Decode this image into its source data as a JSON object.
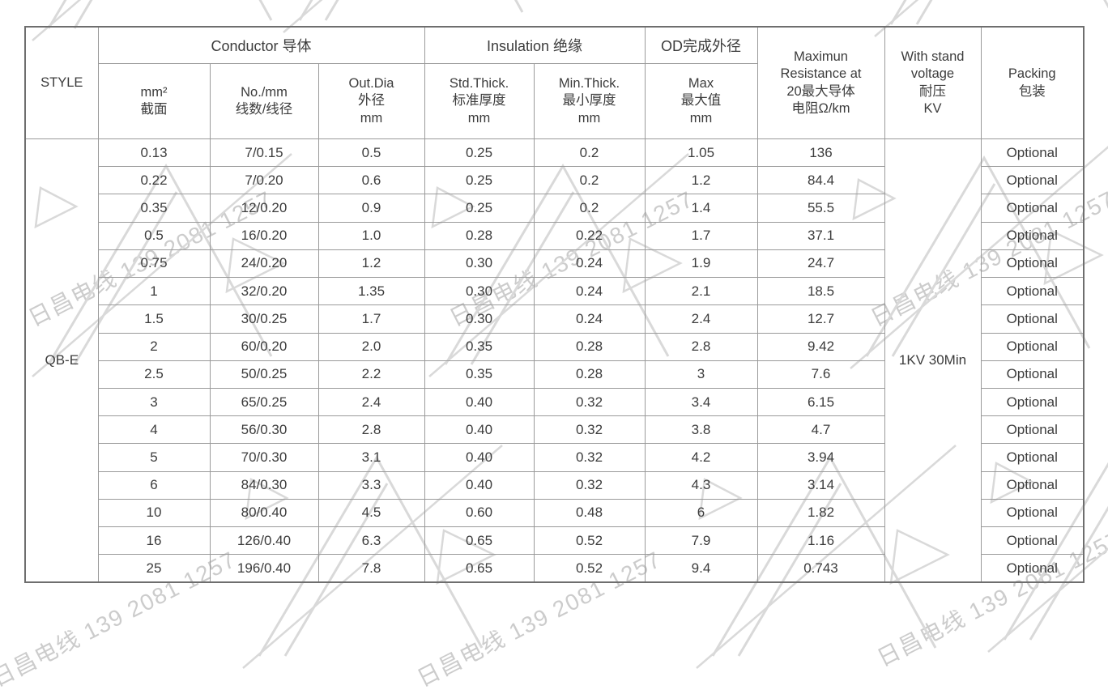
{
  "watermark": {
    "text": "日昌电线 139 2081 1257"
  },
  "table": {
    "style_header": "STYLE",
    "style_value": "QB-E",
    "group_headers": {
      "conductor": "Conductor 导体",
      "insulation": "Insulation 绝缘",
      "od": "OD完成外径"
    },
    "column_headers": {
      "mm2": "mm²\n截面",
      "no_mm": "No./mm\n线数/线径",
      "out_dia": "Out.Dia\n外径\nmm",
      "std_thick": "Std.Thick.\n标准厚度\nmm",
      "min_thick": "Min.Thick.\n最小厚度\nmm",
      "od_max": "Max\n最大值\nmm",
      "resistance": "Maximun\nResistance at\n20最大导体\n电阻Ω/km",
      "withstand": "With stand\nvoltage\n耐压\nKV",
      "packing": "Packing\n包装"
    },
    "withstand_value": "1KV 30Min",
    "rows": [
      {
        "mm2": "0.13",
        "no_mm": "7/0.15",
        "out_dia": "0.5",
        "std_thick": "0.25",
        "min_thick": "0.2",
        "od_max": "1.05",
        "resistance": "136",
        "packing": "Optional"
      },
      {
        "mm2": "0.22",
        "no_mm": "7/0.20",
        "out_dia": "0.6",
        "std_thick": "0.25",
        "min_thick": "0.2",
        "od_max": "1.2",
        "resistance": "84.4",
        "packing": "Optional"
      },
      {
        "mm2": "0.35",
        "no_mm": "12/0.20",
        "out_dia": "0.9",
        "std_thick": "0.25",
        "min_thick": "0.2",
        "od_max": "1.4",
        "resistance": "55.5",
        "packing": "Optional"
      },
      {
        "mm2": "0.5",
        "no_mm": "16/0.20",
        "out_dia": "1.0",
        "std_thick": "0.28",
        "min_thick": "0.22",
        "od_max": "1.7",
        "resistance": "37.1",
        "packing": "Optional"
      },
      {
        "mm2": "0.75",
        "no_mm": "24/0.20",
        "out_dia": "1.2",
        "std_thick": "0.30",
        "min_thick": "0.24",
        "od_max": "1.9",
        "resistance": "24.7",
        "packing": "Optional"
      },
      {
        "mm2": "1",
        "no_mm": "32/0.20",
        "out_dia": "1.35",
        "std_thick": "0.30",
        "min_thick": "0.24",
        "od_max": "2.1",
        "resistance": "18.5",
        "packing": "Optional"
      },
      {
        "mm2": "1.5",
        "no_mm": "30/0.25",
        "out_dia": "1.7",
        "std_thick": "0.30",
        "min_thick": "0.24",
        "od_max": "2.4",
        "resistance": "12.7",
        "packing": "Optional"
      },
      {
        "mm2": "2",
        "no_mm": "60/0.20",
        "out_dia": "2.0",
        "std_thick": "0.35",
        "min_thick": "0.28",
        "od_max": "2.8",
        "resistance": "9.42",
        "packing": "Optional"
      },
      {
        "mm2": "2.5",
        "no_mm": "50/0.25",
        "out_dia": "2.2",
        "std_thick": "0.35",
        "min_thick": "0.28",
        "od_max": "3",
        "resistance": "7.6",
        "packing": "Optional"
      },
      {
        "mm2": "3",
        "no_mm": "65/0.25",
        "out_dia": "2.4",
        "std_thick": "0.40",
        "min_thick": "0.32",
        "od_max": "3.4",
        "resistance": "6.15",
        "packing": "Optional"
      },
      {
        "mm2": "4",
        "no_mm": "56/0.30",
        "out_dia": "2.8",
        "std_thick": "0.40",
        "min_thick": "0.32",
        "od_max": "3.8",
        "resistance": "4.7",
        "packing": "Optional"
      },
      {
        "mm2": "5",
        "no_mm": "70/0.30",
        "out_dia": "3.1",
        "std_thick": "0.40",
        "min_thick": "0.32",
        "od_max": "4.2",
        "resistance": "3.94",
        "packing": "Optional"
      },
      {
        "mm2": "6",
        "no_mm": "84/0.30",
        "out_dia": "3.3",
        "std_thick": "0.40",
        "min_thick": "0.32",
        "od_max": "4.3",
        "resistance": "3.14",
        "packing": "Optional"
      },
      {
        "mm2": "10",
        "no_mm": "80/0.40",
        "out_dia": "4.5",
        "std_thick": "0.60",
        "min_thick": "0.48",
        "od_max": "6",
        "resistance": "1.82",
        "packing": "Optional"
      },
      {
        "mm2": "16",
        "no_mm": "126/0.40",
        "out_dia": "6.3",
        "std_thick": "0.65",
        "min_thick": "0.52",
        "od_max": "7.9",
        "resistance": "1.16",
        "packing": "Optional"
      },
      {
        "mm2": "25",
        "no_mm": "196/0.40",
        "out_dia": "7.8",
        "std_thick": "0.65",
        "min_thick": "0.52",
        "od_max": "9.4",
        "resistance": "0.743",
        "packing": "Optional"
      }
    ]
  }
}
